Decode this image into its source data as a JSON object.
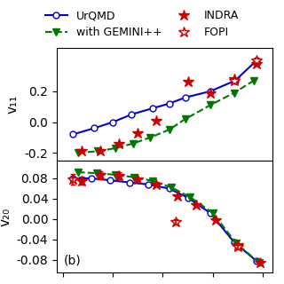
{
  "chart_data": [
    {
      "type": "line",
      "y_label": "v₁₁",
      "xlim": [
        -0.85,
        0.88
      ],
      "xticks": [
        -0.8,
        -0.4,
        0.0,
        0.4,
        0.8
      ],
      "ylim": [
        -0.25,
        0.48
      ],
      "yticks": [
        -0.2,
        0.0,
        0.2
      ],
      "tick_labels": "y",
      "legend": "upper center",
      "series": [
        {
          "name": "UrQMD",
          "type": "line",
          "color": "#0000cc",
          "marker": "circle_open",
          "line_style": "solid",
          "x": [
            -0.72,
            -0.55,
            -0.4,
            -0.25,
            -0.08,
            0.05,
            0.18,
            0.38,
            0.58,
            0.75
          ],
          "values": [
            -0.08,
            -0.04,
            0.0,
            0.05,
            0.09,
            0.12,
            0.16,
            0.2,
            0.27,
            0.4
          ]
        },
        {
          "name": "with GEMINI++",
          "type": "line",
          "color": "#007700",
          "marker": "triangle_down",
          "line_style": "dashed",
          "x": [
            -0.68,
            -0.52,
            -0.38,
            -0.24,
            -0.1,
            0.05,
            0.18,
            0.38,
            0.57,
            0.73
          ],
          "values": [
            -0.2,
            -0.19,
            -0.17,
            -0.14,
            -0.1,
            -0.05,
            0.02,
            0.11,
            0.19,
            0.27
          ]
        },
        {
          "name": "INDRA",
          "type": "scatter",
          "color": "#cc0000",
          "marker": "star",
          "line_style": "none",
          "x": [
            -0.65,
            -0.5,
            -0.35,
            -0.2,
            -0.05,
            0.2,
            0.38,
            0.57,
            0.75
          ],
          "values": [
            -0.19,
            -0.19,
            -0.14,
            -0.07,
            0.01,
            0.26,
            0.19,
            0.28,
            0.38
          ]
        },
        {
          "name": "FOPI",
          "type": "scatter",
          "color": "#cc0000",
          "marker": "star_open",
          "line_style": "none",
          "x": [
            0.57,
            0.75
          ],
          "values": [
            0.27,
            0.4
          ]
        }
      ]
    },
    {
      "type": "line",
      "y_label": "v₂₀",
      "xlim": [
        -0.85,
        0.88
      ],
      "xticks": [
        -0.8,
        -0.4,
        0.0,
        0.4,
        0.8
      ],
      "ylim": [
        -0.105,
        0.115
      ],
      "yticks": [
        -0.08,
        -0.04,
        {
          "value": 0.0,
          "label": "0.00"
        },
        0.04,
        0.08
      ],
      "tick_labels": "y",
      "annotations": [
        {
          "text": "(b)"
        }
      ],
      "series": [
        {
          "name": "UrQMD",
          "type": "line",
          "color": "#0000cc",
          "marker": "circle_open",
          "line_style": "solid",
          "x": [
            -0.72,
            -0.57,
            -0.42,
            -0.27,
            -0.12,
            0.05,
            0.2,
            0.38,
            0.57,
            0.75
          ],
          "values": [
            0.08,
            0.08,
            0.076,
            0.072,
            0.068,
            0.06,
            0.042,
            0.012,
            -0.045,
            -0.082
          ]
        },
        {
          "name": "with GEMINI++",
          "type": "line",
          "color": "#007700",
          "marker": "triangle_down",
          "line_style": "dashed",
          "x": [
            -0.68,
            -0.53,
            -0.38,
            -0.23,
            -0.08,
            0.07,
            0.22,
            0.4,
            0.59,
            0.77
          ],
          "values": [
            0.092,
            0.09,
            0.087,
            0.082,
            0.075,
            0.062,
            0.043,
            0.012,
            -0.048,
            -0.085
          ]
        },
        {
          "name": "INDRA",
          "type": "scatter",
          "color": "#cc0000",
          "marker": "star",
          "line_style": "none",
          "x": [
            -0.65,
            -0.5,
            -0.35,
            -0.2,
            -0.05,
            0.12,
            0.27,
            0.42,
            0.6,
            0.78
          ],
          "values": [
            0.075,
            0.086,
            0.085,
            0.078,
            0.068,
            0.045,
            0.028,
            -0.002,
            -0.05,
            -0.085
          ],
          "errors": [
            0.008,
            0.008,
            0.007,
            0.0,
            0.0,
            0.0,
            0.0,
            0.0,
            0.0,
            0.0
          ]
        },
        {
          "name": "FOPI",
          "type": "scatter",
          "color": "#cc0000",
          "marker": "star_open",
          "line_style": "none",
          "x": [
            -0.72,
            0.1,
            0.6
          ],
          "values": [
            0.078,
            -0.005,
            -0.055
          ],
          "errors": [
            0.01,
            0.005,
            0.005
          ]
        }
      ]
    }
  ]
}
